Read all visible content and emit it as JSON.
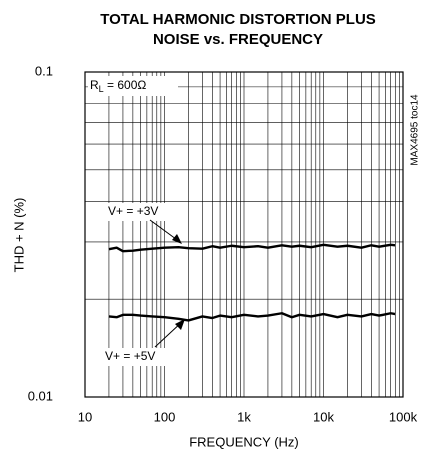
{
  "chart_data": {
    "type": "line",
    "title": [
      "TOTAL HARMONIC DISTORTION PLUS",
      "NOISE vs. FREQUENCY"
    ],
    "x_label": "FREQUENCY (Hz)",
    "y_label": "THD + N (%)",
    "x_log": true,
    "y_log": true,
    "grid": true,
    "xlim": [
      10,
      100000
    ],
    "ylim": [
      0.01,
      0.1
    ],
    "xticks": [
      10,
      100,
      {
        "value": 1000,
        "label": "1k"
      },
      {
        "value": 10000,
        "label": "10k"
      },
      {
        "value": 100000,
        "label": "100k"
      }
    ],
    "yticks": [
      0.01,
      0.1
    ],
    "x": [
      20,
      25,
      30,
      40,
      50,
      70,
      100,
      150,
      200,
      300,
      400,
      500,
      700,
      1000,
      1500,
      2000,
      3000,
      4000,
      5000,
      7000,
      10000,
      15000,
      20000,
      30000,
      40000,
      50000,
      70000,
      80000
    ],
    "series": [
      {
        "name": "V+ = +3V",
        "color": "#000000",
        "values": [
          0.0285,
          0.0288,
          0.0281,
          0.0282,
          0.0284,
          0.0286,
          0.0288,
          0.0289,
          0.0287,
          0.0286,
          0.0291,
          0.0288,
          0.0292,
          0.0289,
          0.0291,
          0.0288,
          0.0293,
          0.029,
          0.0292,
          0.0289,
          0.0294,
          0.029,
          0.0292,
          0.0288,
          0.0293,
          0.029,
          0.0294,
          0.0293
        ]
      },
      {
        "name": "V+ = +5V",
        "color": "#000000",
        "values": [
          0.0177,
          0.0176,
          0.0179,
          0.0179,
          0.0178,
          0.0177,
          0.0176,
          0.0174,
          0.0172,
          0.0177,
          0.0175,
          0.0178,
          0.0176,
          0.0179,
          0.0177,
          0.0178,
          0.0181,
          0.0176,
          0.0179,
          0.0177,
          0.018,
          0.0176,
          0.0179,
          0.0177,
          0.018,
          0.0178,
          0.0181,
          0.018
        ]
      }
    ],
    "load_label": {
      "symbol": "R",
      "subscript": "L",
      "text": " = 600Ω"
    },
    "part_label": "MAX4695 toc14"
  }
}
